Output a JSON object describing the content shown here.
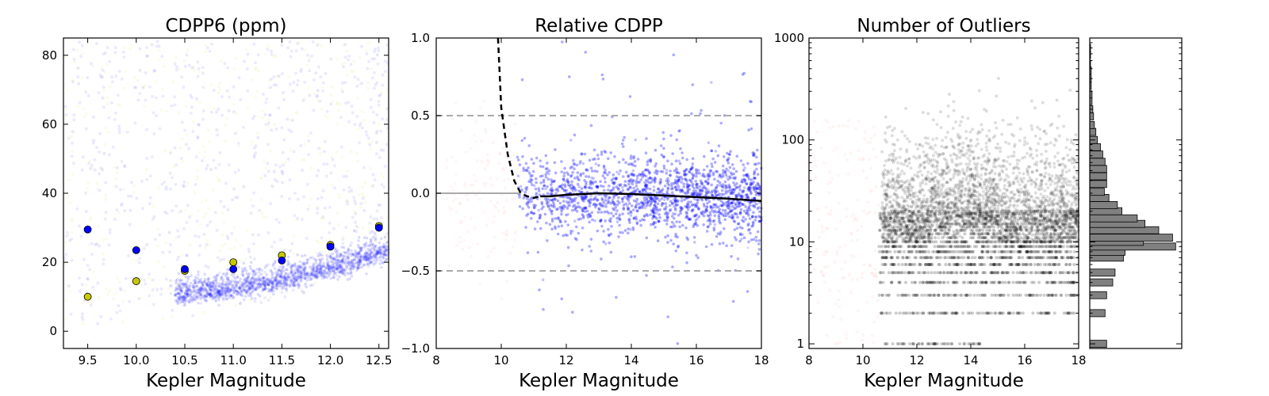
{
  "chart_data": [
    {
      "type": "scatter",
      "title": "CDPP6 (ppm)",
      "xlabel": "Kepler Magnitude",
      "ylabel": "",
      "xlim": [
        9.25,
        12.6
      ],
      "ylim": [
        -5,
        85
      ],
      "xticks": [
        "9.5",
        "10.0",
        "10.5",
        "11.0",
        "11.5",
        "12.0",
        "12.5"
      ],
      "yticks": [
        "0",
        "20",
        "40",
        "60",
        "80"
      ],
      "grid": false,
      "colors": {
        "blue": "#0000ff",
        "yellow": "#c8c800"
      },
      "series": [
        {
          "color": "yellow",
          "x": [
            9.5,
            10.0,
            10.5,
            11.0,
            11.5,
            12.0,
            12.5
          ],
          "y": [
            10,
            14.5,
            17.5,
            20,
            22,
            25,
            30.5
          ]
        },
        {
          "color": "blue",
          "x": [
            9.5,
            10.0,
            10.5,
            11.0,
            11.5,
            12.0,
            12.5
          ],
          "y": [
            29.5,
            23.5,
            18,
            18,
            20.5,
            24.5,
            30
          ]
        }
      ]
    },
    {
      "type": "scatter",
      "title": "Relative CDPP",
      "xlabel": "Kepler Magnitude",
      "ylabel": "",
      "xlim": [
        8,
        18
      ],
      "ylim": [
        -1.0,
        1.0
      ],
      "xticks": [
        "8",
        "10",
        "12",
        "14",
        "16",
        "18"
      ],
      "yticks": [
        "1.0",
        "0.5",
        "0.0",
        "−0.5",
        "−1.0"
      ],
      "reference_lines": [
        0.5,
        -0.5
      ],
      "fit_curve": {
        "x": [
          9.9,
          10.0,
          10.2,
          10.4,
          10.6,
          10.8,
          11.0,
          11.2,
          11.5,
          12,
          13,
          14,
          15,
          16,
          17,
          18
        ],
        "y": [
          1.0,
          0.55,
          0.25,
          0.08,
          0.0,
          -0.02,
          -0.03,
          -0.02,
          -0.02,
          -0.01,
          0.0,
          -0.005,
          -0.015,
          -0.025,
          -0.035,
          -0.05
        ]
      },
      "grid": false
    },
    {
      "type": "scatter",
      "title": "Number of Outliers",
      "xlabel": "Kepler Magnitude",
      "ylabel": "",
      "xlim": [
        8,
        18
      ],
      "ylim": [
        0.9,
        1000
      ],
      "yscale": "log",
      "xticks": [
        "8",
        "10",
        "12",
        "14",
        "16",
        "18"
      ],
      "yticks": [
        "1",
        "10",
        "100",
        "1000"
      ],
      "histogram": {
        "orientation": "horizontal",
        "bins": [
          {
            "y": 1,
            "count": 22
          },
          {
            "y": 2,
            "count": 20
          },
          {
            "y": 3,
            "count": 22
          },
          {
            "y": 4,
            "count": 30
          },
          {
            "y": 5,
            "count": 33
          },
          {
            "y": 7,
            "count": 44
          },
          {
            "y": 8,
            "count": 46
          },
          {
            "y": 9,
            "count": 112
          },
          {
            "y": 10,
            "count": 70
          },
          {
            "y": 11,
            "count": 108
          },
          {
            "y": 13,
            "count": 90
          },
          {
            "y": 15,
            "count": 72
          },
          {
            "y": 17,
            "count": 62
          },
          {
            "y": 20,
            "count": 42
          },
          {
            "y": 23,
            "count": 36
          },
          {
            "y": 27,
            "count": 25
          },
          {
            "y": 31,
            "count": 19
          },
          {
            "y": 37,
            "count": 22
          },
          {
            "y": 44,
            "count": 22
          },
          {
            "y": 52,
            "count": 22
          },
          {
            "y": 61,
            "count": 20
          },
          {
            "y": 72,
            "count": 17
          },
          {
            "y": 85,
            "count": 14
          },
          {
            "y": 100,
            "count": 10
          },
          {
            "y": 120,
            "count": 8
          },
          {
            "y": 140,
            "count": 6
          },
          {
            "y": 170,
            "count": 5
          },
          {
            "y": 200,
            "count": 4
          },
          {
            "y": 240,
            "count": 3
          },
          {
            "y": 280,
            "count": 3
          },
          {
            "y": 340,
            "count": 2
          },
          {
            "y": 400,
            "count": 2
          },
          {
            "y": 480,
            "count": 2
          },
          {
            "y": 560,
            "count": 1
          },
          {
            "y": 680,
            "count": 1
          },
          {
            "y": 800,
            "count": 1
          }
        ],
        "max_count": 120
      },
      "grid": false
    }
  ]
}
